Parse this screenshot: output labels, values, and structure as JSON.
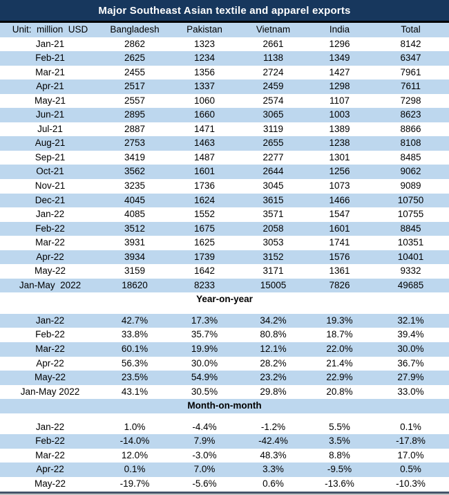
{
  "title": "Major Southeast Asian textile and apparel exports",
  "unit_label": "Unit:  million  USD",
  "columns": [
    "Bangladesh",
    "Pakistan",
    "Vietnam",
    "India",
    "Total"
  ],
  "colors": {
    "title_bg": "#17375D",
    "title_fg": "#FFFFFF",
    "title_separator": "#000000",
    "band_bg": "#BDD7EE",
    "text": "#000000",
    "bottom_line": "#44546A",
    "bottom_shadow": "#C3C3C3"
  },
  "sections": [
    {
      "name": "monthly-exports",
      "header": null,
      "header_shaded": false,
      "rows": [
        {
          "label": "Jan-21",
          "shaded": false,
          "values": [
            "2862",
            "1323",
            "2661",
            "1296",
            "8142"
          ]
        },
        {
          "label": "Feb-21",
          "shaded": true,
          "values": [
            "2625",
            "1234",
            "1138",
            "1349",
            "6347"
          ]
        },
        {
          "label": "Mar-21",
          "shaded": false,
          "values": [
            "2455",
            "1356",
            "2724",
            "1427",
            "7961"
          ]
        },
        {
          "label": "Apr-21",
          "shaded": true,
          "values": [
            "2517",
            "1337",
            "2459",
            "1298",
            "7611"
          ]
        },
        {
          "label": "May-21",
          "shaded": false,
          "values": [
            "2557",
            "1060",
            "2574",
            "1107",
            "7298"
          ]
        },
        {
          "label": "Jun-21",
          "shaded": true,
          "values": [
            "2895",
            "1660",
            "3065",
            "1003",
            "8623"
          ]
        },
        {
          "label": "Jul-21",
          "shaded": false,
          "values": [
            "2887",
            "1471",
            "3119",
            "1389",
            "8866"
          ]
        },
        {
          "label": "Aug-21",
          "shaded": true,
          "values": [
            "2753",
            "1463",
            "2655",
            "1238",
            "8108"
          ]
        },
        {
          "label": "Sep-21",
          "shaded": false,
          "values": [
            "3419",
            "1487",
            "2277",
            "1301",
            "8485"
          ]
        },
        {
          "label": "Oct-21",
          "shaded": true,
          "values": [
            "3562",
            "1601",
            "2644",
            "1256",
            "9062"
          ]
        },
        {
          "label": "Nov-21",
          "shaded": false,
          "values": [
            "3235",
            "1736",
            "3045",
            "1073",
            "9089"
          ]
        },
        {
          "label": "Dec-21",
          "shaded": true,
          "values": [
            "4045",
            "1624",
            "3615",
            "1466",
            "10750"
          ]
        },
        {
          "label": "Jan-22",
          "shaded": false,
          "values": [
            "4085",
            "1552",
            "3571",
            "1547",
            "10755"
          ]
        },
        {
          "label": "Feb-22",
          "shaded": true,
          "values": [
            "3512",
            "1675",
            "2058",
            "1601",
            "8845"
          ]
        },
        {
          "label": "Mar-22",
          "shaded": false,
          "values": [
            "3931",
            "1625",
            "3053",
            "1741",
            "10351"
          ]
        },
        {
          "label": "Apr-22",
          "shaded": true,
          "values": [
            "3934",
            "1739",
            "3152",
            "1576",
            "10401"
          ]
        },
        {
          "label": "May-22",
          "shaded": false,
          "values": [
            "3159",
            "1642",
            "3171",
            "1361",
            "9332"
          ]
        },
        {
          "label": "Jan-May  2022",
          "shaded": true,
          "values": [
            "18620",
            "8233",
            "15005",
            "7826",
            "49685"
          ]
        }
      ]
    },
    {
      "name": "year-on-year",
      "header": "Year-on-year",
      "header_shaded": false,
      "rows": [
        {
          "label": "Jan-22",
          "shaded": true,
          "values": [
            "42.7%",
            "17.3%",
            "34.2%",
            "19.3%",
            "32.1%"
          ]
        },
        {
          "label": "Feb-22",
          "shaded": false,
          "values": [
            "33.8%",
            "35.7%",
            "80.8%",
            "18.7%",
            "39.4%"
          ]
        },
        {
          "label": "Mar-22",
          "shaded": true,
          "values": [
            "60.1%",
            "19.9%",
            "12.1%",
            "22.0%",
            "30.0%"
          ]
        },
        {
          "label": "Apr-22",
          "shaded": false,
          "values": [
            "56.3%",
            "30.0%",
            "28.2%",
            "21.4%",
            "36.7%"
          ]
        },
        {
          "label": "May-22",
          "shaded": true,
          "values": [
            "23.5%",
            "54.9%",
            "23.2%",
            "22.9%",
            "27.9%"
          ]
        },
        {
          "label": "Jan-May 2022",
          "shaded": false,
          "values": [
            "43.1%",
            "30.5%",
            "29.8%",
            "20.8%",
            "33.0%"
          ]
        }
      ]
    },
    {
      "name": "month-on-month",
      "header": "Month-on-month",
      "header_shaded": true,
      "rows": [
        {
          "label": "Jan-22",
          "shaded": false,
          "values": [
            "1.0%",
            "-4.4%",
            "-1.2%",
            "5.5%",
            "0.1%"
          ]
        },
        {
          "label": "Feb-22",
          "shaded": true,
          "values": [
            "-14.0%",
            "7.9%",
            "-42.4%",
            "3.5%",
            "-17.8%"
          ]
        },
        {
          "label": "Mar-22",
          "shaded": false,
          "values": [
            "12.0%",
            "-3.0%",
            "48.3%",
            "8.8%",
            "17.0%"
          ]
        },
        {
          "label": "Apr-22",
          "shaded": true,
          "values": [
            "0.1%",
            "7.0%",
            "3.3%",
            "-9.5%",
            "0.5%"
          ]
        },
        {
          "label": "May-22",
          "shaded": false,
          "values": [
            "-19.7%",
            "-5.6%",
            "0.6%",
            "-13.6%",
            "-10.3%"
          ]
        }
      ]
    }
  ]
}
